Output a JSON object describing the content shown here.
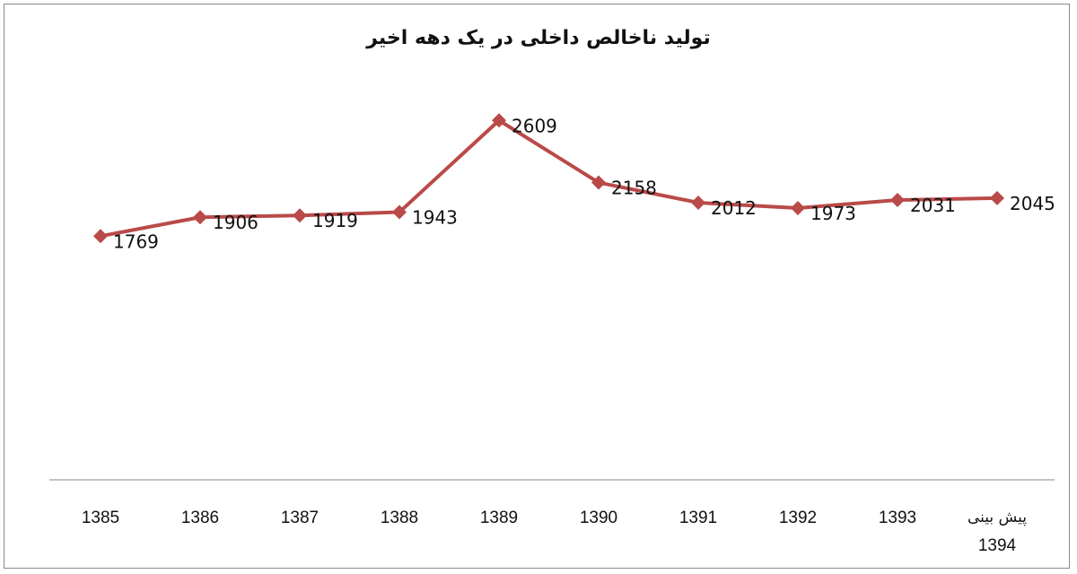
{
  "chart_data": {
    "type": "line",
    "title": "تولید ناخالص داخلی در یک دهه اخیر",
    "categories": [
      [
        "1385"
      ],
      [
        "1386"
      ],
      [
        "1387"
      ],
      [
        "1388"
      ],
      [
        "1389"
      ],
      [
        "1390"
      ],
      [
        "1391"
      ],
      [
        "1392"
      ],
      [
        "1393"
      ],
      [
        "پیش بینی",
        "1394"
      ]
    ],
    "series": [
      {
        "values": [
          1769,
          1906,
          1919,
          1943,
          2609,
          2158,
          2012,
          1973,
          2031,
          2045
        ]
      }
    ],
    "data_labels": [
      "1769",
      "1906",
      "1919",
      "1943",
      "2609",
      "2158",
      "2012",
      "1973",
      "2031",
      "2045"
    ],
    "ylim": [
      0,
      3000
    ],
    "grid": false,
    "line_color": "#b94a48",
    "marker": "diamond"
  }
}
